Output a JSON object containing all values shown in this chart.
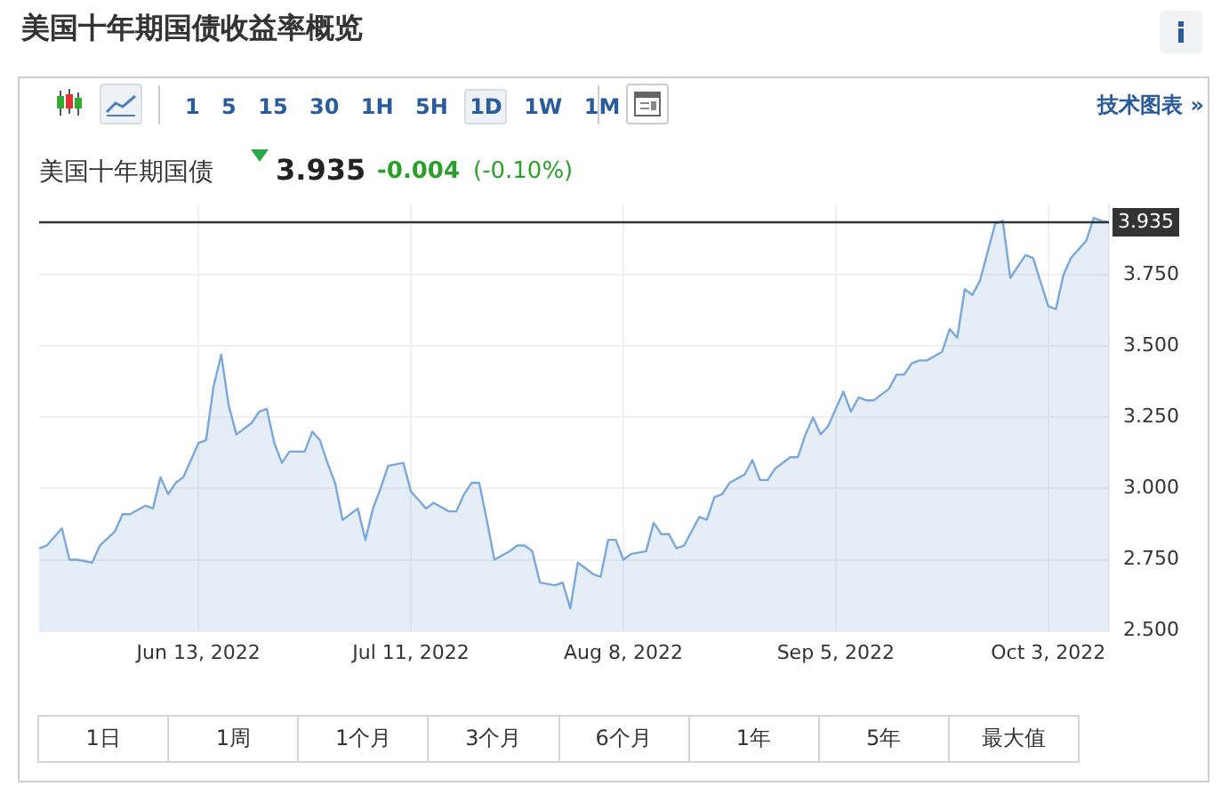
{
  "chart_data": {
    "type": "area",
    "title": "美国十年期国债收益率概览",
    "x": [
      "2022-05-23",
      "2022-05-24",
      "2022-05-26",
      "2022-05-27",
      "2022-05-28",
      "2022-05-30",
      "2022-05-31",
      "2022-06-02",
      "2022-06-03",
      "2022-06-04",
      "2022-06-06",
      "2022-06-07",
      "2022-06-08",
      "2022-06-09",
      "2022-06-10",
      "2022-06-11",
      "2022-06-13",
      "2022-06-14",
      "2022-06-15",
      "2022-06-16",
      "2022-06-17",
      "2022-06-18",
      "2022-06-20",
      "2022-06-21",
      "2022-06-22",
      "2022-06-23",
      "2022-06-24",
      "2022-06-25",
      "2022-06-27",
      "2022-06-28",
      "2022-06-29",
      "2022-06-30",
      "2022-07-01",
      "2022-07-02",
      "2022-07-04",
      "2022-07-05",
      "2022-07-06",
      "2022-07-07",
      "2022-07-08",
      "2022-07-10",
      "2022-07-11",
      "2022-07-12",
      "2022-07-13",
      "2022-07-14",
      "2022-07-16",
      "2022-07-17",
      "2022-07-18",
      "2022-07-19",
      "2022-07-20",
      "2022-07-21",
      "2022-07-22",
      "2022-07-24",
      "2022-07-25",
      "2022-07-26",
      "2022-07-27",
      "2022-07-28",
      "2022-07-30",
      "2022-07-31",
      "2022-08-01",
      "2022-08-02",
      "2022-08-04",
      "2022-08-05",
      "2022-08-06",
      "2022-08-07",
      "2022-08-08",
      "2022-08-09",
      "2022-08-11",
      "2022-08-12",
      "2022-08-13",
      "2022-08-14",
      "2022-08-15",
      "2022-08-16",
      "2022-08-18",
      "2022-08-19",
      "2022-08-20",
      "2022-08-21",
      "2022-08-22",
      "2022-08-24",
      "2022-08-25",
      "2022-08-26",
      "2022-08-27",
      "2022-08-28",
      "2022-08-30",
      "2022-08-31",
      "2022-09-01",
      "2022-09-02",
      "2022-09-03",
      "2022-09-04",
      "2022-09-06",
      "2022-09-07",
      "2022-09-08",
      "2022-09-09",
      "2022-09-10",
      "2022-09-12",
      "2022-09-13",
      "2022-09-14",
      "2022-09-15",
      "2022-09-16",
      "2022-09-17",
      "2022-09-19",
      "2022-09-20",
      "2022-09-21",
      "2022-09-22",
      "2022-09-23",
      "2022-09-24",
      "2022-09-26",
      "2022-09-27",
      "2022-09-28",
      "2022-09-29",
      "2022-09-30",
      "2022-10-01",
      "2022-10-03",
      "2022-10-04",
      "2022-10-05",
      "2022-10-06",
      "2022-10-08",
      "2022-10-09",
      "2022-10-10",
      "2022-10-11"
    ],
    "series": [
      {
        "color": "#7ba7d9",
        "values": [
          2.79,
          2.8,
          2.86,
          2.75,
          2.75,
          2.74,
          2.8,
          2.85,
          2.91,
          2.91,
          2.94,
          2.93,
          3.04,
          2.98,
          3.02,
          3.04,
          3.16,
          3.17,
          3.36,
          3.47,
          3.29,
          3.19,
          3.23,
          3.27,
          3.28,
          3.16,
          3.09,
          3.13,
          3.13,
          3.2,
          3.17,
          3.09,
          3.02,
          2.89,
          2.93,
          2.82,
          2.93,
          3.0,
          3.08,
          3.09,
          2.99,
          2.96,
          2.93,
          2.95,
          2.92,
          2.92,
          2.98,
          3.02,
          3.02,
          2.89,
          2.75,
          2.78,
          2.8,
          2.8,
          2.78,
          2.67,
          2.66,
          2.67,
          2.58,
          2.74,
          2.7,
          2.69,
          2.82,
          2.82,
          2.75,
          2.77,
          2.78,
          2.88,
          2.84,
          2.84,
          2.79,
          2.8,
          2.9,
          2.89,
          2.97,
          2.98,
          3.02,
          3.05,
          3.1,
          3.03,
          3.03,
          3.07,
          3.11,
          3.11,
          3.19,
          3.25,
          3.19,
          3.22,
          3.34,
          3.27,
          3.32,
          3.31,
          3.31,
          3.35,
          3.4,
          3.4,
          3.44,
          3.45,
          3.45,
          3.48,
          3.56,
          3.53,
          3.7,
          3.68,
          3.73,
          3.93,
          3.94,
          3.74,
          3.78,
          3.82,
          3.81,
          3.64,
          3.63,
          3.75,
          3.81,
          3.87,
          3.95,
          3.94,
          3.935
        ]
      }
    ],
    "xlim": [
      "2022-05-23",
      "2022-10-11"
    ],
    "xticks": [
      {
        "value": "2022-06-13",
        "label": "Jun 13, 2022"
      },
      {
        "value": "2022-07-11",
        "label": "Jul 11, 2022"
      },
      {
        "value": "2022-08-08",
        "label": "Aug 8, 2022"
      },
      {
        "value": "2022-09-05",
        "label": "Sep 5, 2022"
      },
      {
        "value": "2022-10-03",
        "label": "Oct 3, 2022"
      }
    ],
    "ylim": [
      2.5,
      4.0
    ],
    "yticks": [
      {
        "value": 2.5,
        "label": "2.500"
      },
      {
        "value": 2.75,
        "label": "2.750"
      },
      {
        "value": 3,
        "label": "3.000"
      },
      {
        "value": 3.25,
        "label": "3.250"
      },
      {
        "value": 3.5,
        "label": "3.500"
      },
      {
        "value": 3.75,
        "label": "3.750"
      }
    ],
    "ref_lines": [
      {
        "axis": "y",
        "value": 3.935,
        "label": "3.935",
        "color": "#333333"
      }
    ],
    "grid": true,
    "annotations": [
      "1 5 15 30 1H 5H 1D 1W 1M",
      "技术图表 »",
      "美国十年期国债",
      "3.935",
      "-0.004",
      "(-0.10%)",
      "1日",
      "1周",
      "1个月",
      "3个月",
      "6个月",
      "1年",
      "5年",
      "最大值"
    ]
  }
}
